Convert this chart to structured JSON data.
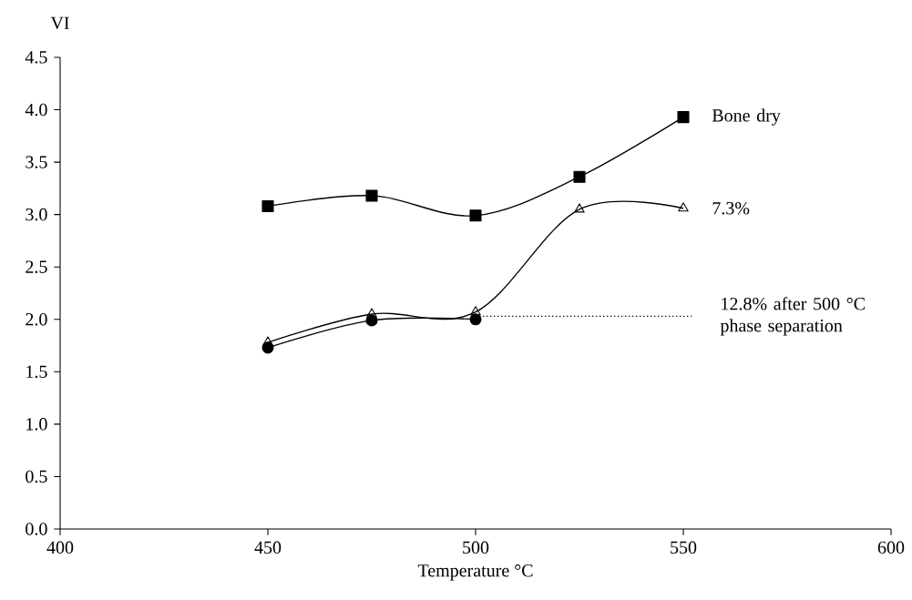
{
  "chart_data": {
    "type": "line",
    "xlabel": "Temperature °C",
    "ylabel": "VI",
    "xlim": [
      400,
      600
    ],
    "ylim": [
      0,
      4.5
    ],
    "xticks": [
      400,
      450,
      500,
      550,
      600
    ],
    "yticks": [
      {
        "value": 0,
        "label": "0.0"
      },
      {
        "value": 0.5,
        "label": "0.5"
      },
      {
        "value": 1,
        "label": "1.0"
      },
      {
        "value": 1.5,
        "label": "1.5"
      },
      {
        "value": 2,
        "label": "2.0"
      },
      {
        "value": 2.5,
        "label": "2.5"
      },
      {
        "value": 3,
        "label": "3.0"
      },
      {
        "value": 3.5,
        "label": "3.5"
      },
      {
        "value": 4,
        "label": "4.0"
      },
      {
        "value": 4.5,
        "label": "4.5"
      }
    ],
    "grid": false,
    "series": [
      {
        "name": "Bone dry",
        "color": "#000000",
        "marker": "square",
        "x": [
          450,
          475,
          500,
          525,
          550
        ],
        "values": [
          3.08,
          3.18,
          2.99,
          3.36,
          3.93
        ]
      },
      {
        "name": "7.3%",
        "color": "#000000",
        "marker": "triangle",
        "x": [
          450,
          475,
          500,
          525,
          550
        ],
        "values": [
          1.78,
          2.05,
          2.07,
          3.05,
          3.06
        ]
      },
      {
        "color": "#000000",
        "marker": "circle",
        "x": [
          450,
          475,
          500
        ],
        "values": [
          1.73,
          1.99,
          2.0
        ]
      },
      {
        "name": "12.8% after 500 °C phase separation",
        "color": "#000000",
        "marker": "none",
        "line_style": "dotted",
        "x": [
          500,
          552
        ],
        "values": [
          2.03,
          2.03
        ]
      }
    ]
  }
}
